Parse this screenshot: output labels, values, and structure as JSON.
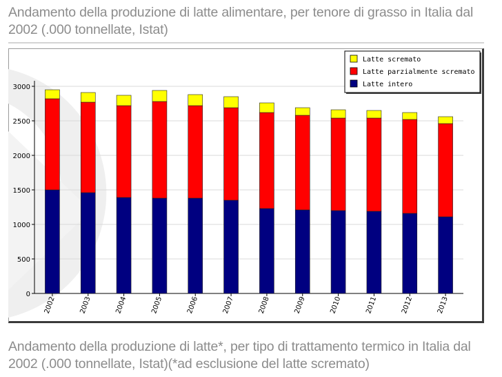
{
  "page": {
    "title_top": "Andamento della produzione di latte alimentare, per tenore di grasso in Italia dal 2002 (.000 tonnellate, Istat)",
    "title_bottom": "Andamento della produzione di latte*, per tipo di trattamento termico in Italia dal 2002 (.000 tonnellate, Istat)(*ad esclusione del latte scremato)"
  },
  "chart_data": {
    "type": "bar",
    "stacked": true,
    "categories": [
      "2002",
      "2003",
      "2004",
      "2005",
      "2006",
      "2007",
      "2008",
      "2009",
      "2010",
      "2011",
      "2012",
      "2013"
    ],
    "series": [
      {
        "name": "Latte intero",
        "color": "#000080",
        "values": [
          1500,
          1460,
          1390,
          1380,
          1380,
          1350,
          1230,
          1210,
          1200,
          1190,
          1160,
          1110
        ]
      },
      {
        "name": "Latte parzialmente scremato",
        "color": "#ff0000",
        "values": [
          1320,
          1310,
          1330,
          1400,
          1340,
          1340,
          1390,
          1370,
          1340,
          1350,
          1360,
          1350
        ]
      },
      {
        "name": "Latte scremato",
        "color": "#ffff00",
        "values": [
          130,
          140,
          150,
          160,
          160,
          160,
          140,
          110,
          120,
          110,
          100,
          100
        ]
      }
    ],
    "ylim": [
      0,
      3000
    ],
    "yticks": [
      0,
      500,
      1000,
      1500,
      2000,
      2500,
      3000
    ],
    "ytick_labels": [
      "0",
      "500",
      "1000",
      "1500",
      "2000",
      "2500",
      "3000"
    ],
    "grid": true,
    "legend_position": "top-right",
    "xlabel": "",
    "ylabel": ""
  }
}
